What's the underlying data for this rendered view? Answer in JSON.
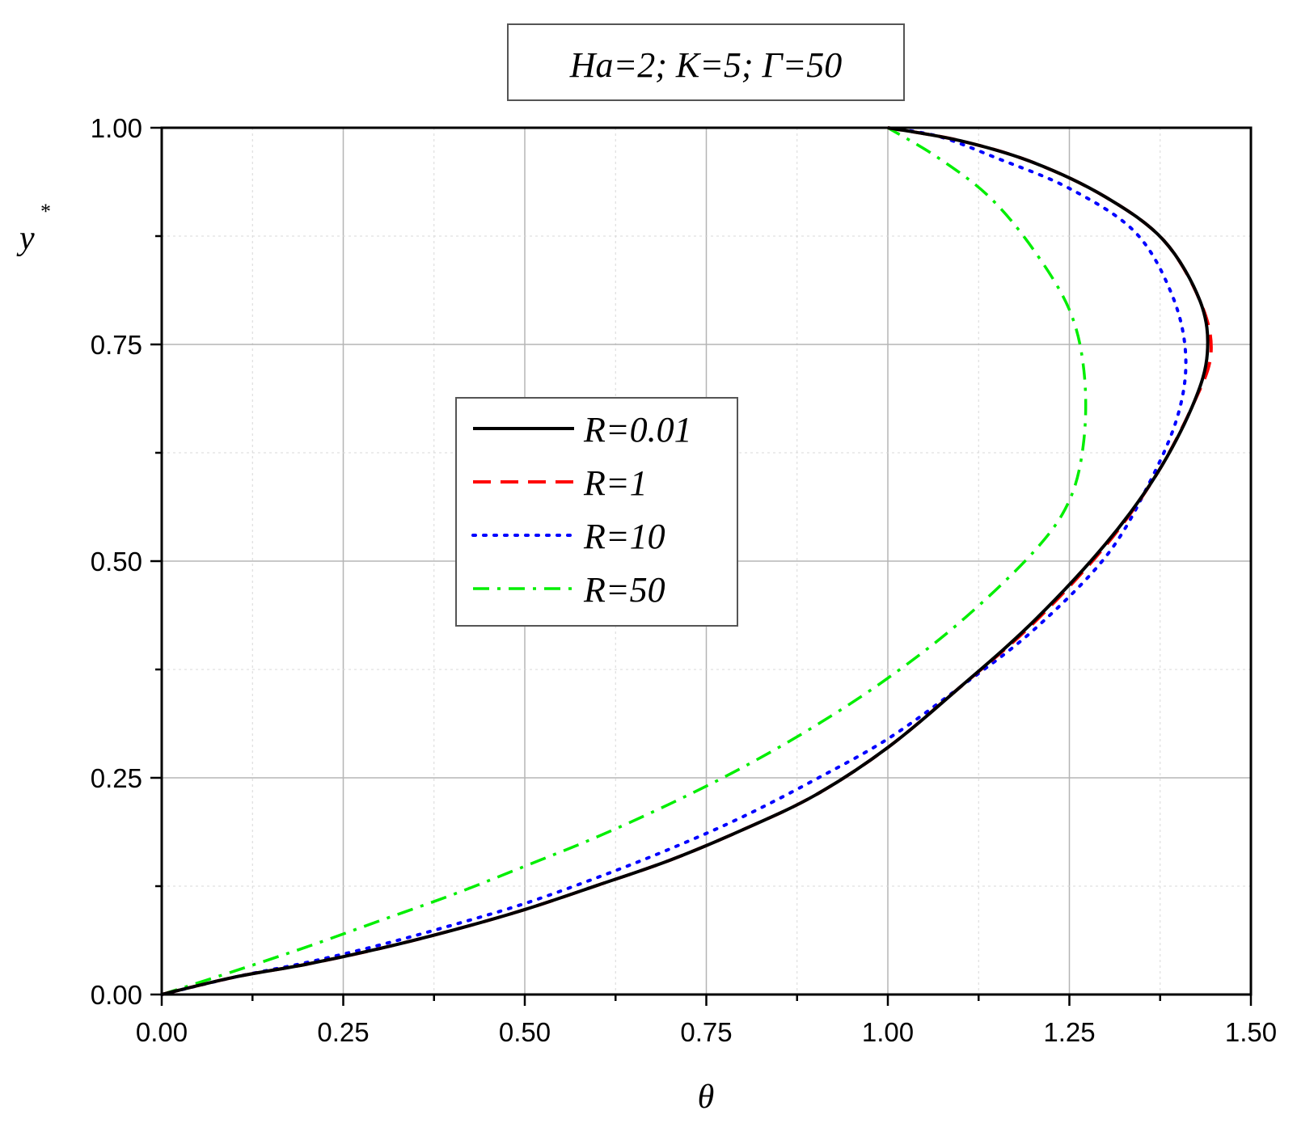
{
  "chart_data": {
    "type": "line",
    "title": "Ha=2; K=5; Γ=50",
    "xlabel": "θ",
    "ylabel": "y",
    "ylabel_superscript": "*",
    "xlim": [
      0,
      1.5
    ],
    "ylim": [
      0,
      1
    ],
    "x_ticks": [
      "0.00",
      "0.25",
      "0.50",
      "0.75",
      "1.00",
      "1.25",
      "1.50"
    ],
    "y_ticks": [
      "0.00",
      "0.25",
      "0.50",
      "0.75",
      "1.00"
    ],
    "grid": true,
    "legend_position": "center-left",
    "series": [
      {
        "name": "R=0.01",
        "color": "#000000",
        "style": "solid",
        "points": [
          [
            0,
            0
          ],
          [
            0.1,
            0.02
          ],
          [
            0.2,
            0.035
          ],
          [
            0.3,
            0.053
          ],
          [
            0.4,
            0.074
          ],
          [
            0.5,
            0.098
          ],
          [
            0.6,
            0.126
          ],
          [
            0.7,
            0.155
          ],
          [
            0.8,
            0.19
          ],
          [
            0.9,
            0.23
          ],
          [
            1.0,
            0.285
          ],
          [
            1.1,
            0.355
          ],
          [
            1.2,
            0.43
          ],
          [
            1.3,
            0.52
          ],
          [
            1.37,
            0.6
          ],
          [
            1.42,
            0.68
          ],
          [
            1.44,
            0.74
          ],
          [
            1.43,
            0.8
          ],
          [
            1.38,
            0.87
          ],
          [
            1.3,
            0.92
          ],
          [
            1.2,
            0.96
          ],
          [
            1.1,
            0.985
          ],
          [
            1.0,
            1.0
          ]
        ]
      },
      {
        "name": "R=1",
        "color": "#ff0000",
        "style": "dashed",
        "points": [
          [
            0,
            0
          ],
          [
            0.1,
            0.02
          ],
          [
            0.2,
            0.035
          ],
          [
            0.3,
            0.053
          ],
          [
            0.4,
            0.074
          ],
          [
            0.5,
            0.098
          ],
          [
            0.6,
            0.126
          ],
          [
            0.7,
            0.155
          ],
          [
            0.8,
            0.19
          ],
          [
            0.9,
            0.23
          ],
          [
            1.0,
            0.285
          ],
          [
            1.1,
            0.355
          ],
          [
            1.2,
            0.428
          ],
          [
            1.3,
            0.518
          ],
          [
            1.37,
            0.6
          ],
          [
            1.42,
            0.68
          ],
          [
            1.445,
            0.74
          ],
          [
            1.43,
            0.8
          ],
          [
            1.38,
            0.87
          ],
          [
            1.3,
            0.92
          ],
          [
            1.2,
            0.96
          ],
          [
            1.1,
            0.985
          ],
          [
            1.0,
            1.0
          ]
        ]
      },
      {
        "name": "R=10",
        "color": "#0000ff",
        "style": "dotted",
        "points": [
          [
            0,
            0
          ],
          [
            0.1,
            0.02
          ],
          [
            0.2,
            0.037
          ],
          [
            0.3,
            0.057
          ],
          [
            0.4,
            0.08
          ],
          [
            0.5,
            0.105
          ],
          [
            0.6,
            0.135
          ],
          [
            0.7,
            0.168
          ],
          [
            0.8,
            0.205
          ],
          [
            0.9,
            0.248
          ],
          [
            1.0,
            0.295
          ],
          [
            1.1,
            0.355
          ],
          [
            1.2,
            0.42
          ],
          [
            1.3,
            0.505
          ],
          [
            1.36,
            0.59
          ],
          [
            1.4,
            0.67
          ],
          [
            1.41,
            0.74
          ],
          [
            1.39,
            0.81
          ],
          [
            1.34,
            0.88
          ],
          [
            1.25,
            0.93
          ],
          [
            1.15,
            0.965
          ],
          [
            1.07,
            0.99
          ],
          [
            1.0,
            1.0
          ]
        ]
      },
      {
        "name": "R=50",
        "color": "#00ee00",
        "style": "dashdot",
        "points": [
          [
            0,
            0
          ],
          [
            0.1,
            0.027
          ],
          [
            0.2,
            0.055
          ],
          [
            0.3,
            0.085
          ],
          [
            0.4,
            0.115
          ],
          [
            0.5,
            0.148
          ],
          [
            0.6,
            0.182
          ],
          [
            0.7,
            0.22
          ],
          [
            0.8,
            0.262
          ],
          [
            0.9,
            0.31
          ],
          [
            1.0,
            0.365
          ],
          [
            1.1,
            0.43
          ],
          [
            1.2,
            0.51
          ],
          [
            1.25,
            0.57
          ],
          [
            1.27,
            0.64
          ],
          [
            1.27,
            0.72
          ],
          [
            1.25,
            0.79
          ],
          [
            1.2,
            0.86
          ],
          [
            1.14,
            0.92
          ],
          [
            1.07,
            0.965
          ],
          [
            1.0,
            1.0
          ]
        ]
      }
    ]
  }
}
